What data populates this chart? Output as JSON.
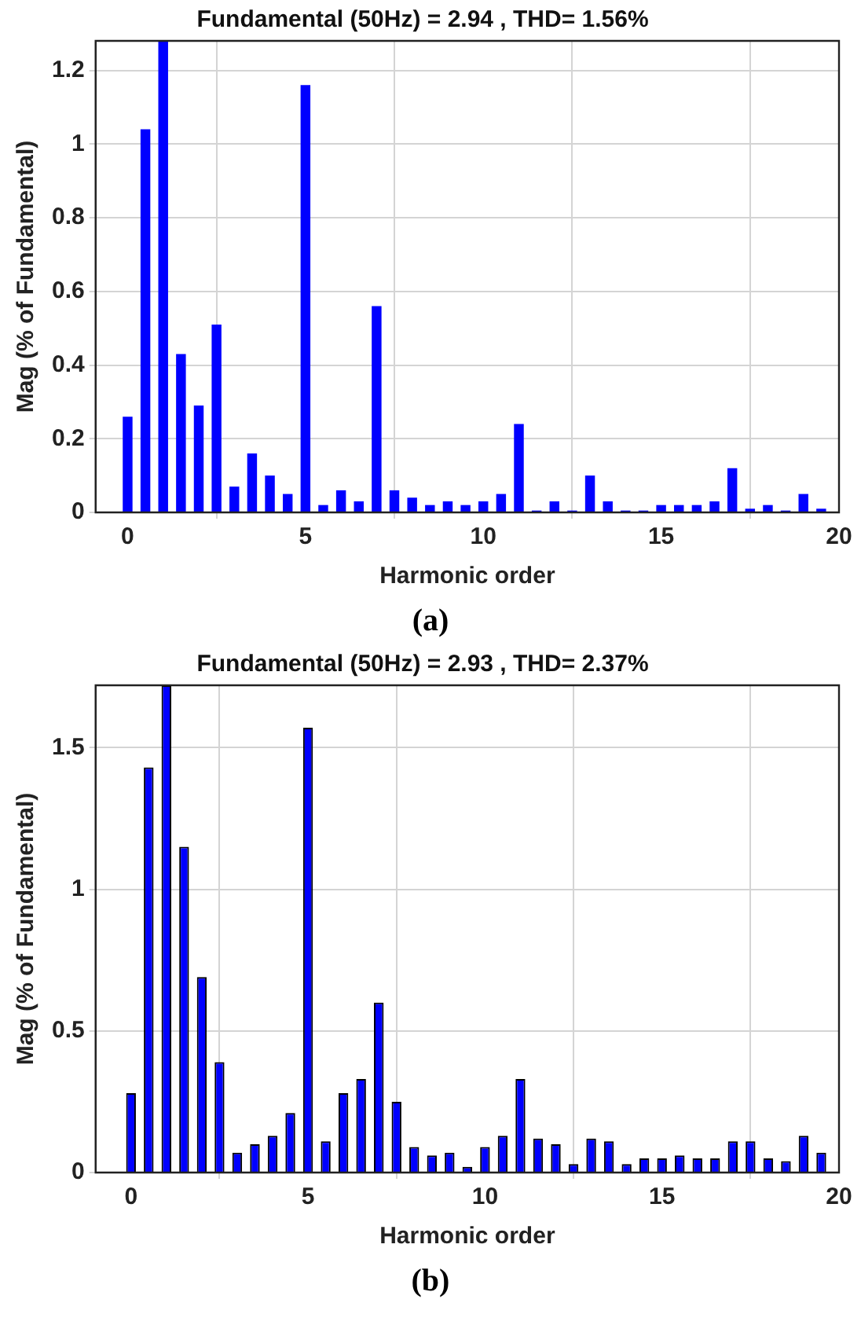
{
  "chart_data": [
    {
      "type": "bar",
      "title": "Fundamental (50Hz) = 2.94 , THD= 1.56%",
      "xlabel": "Harmonic order",
      "ylabel": "Mag (% of Fundamental)",
      "annotations": [
        "(a)"
      ],
      "x": [
        0,
        0.5,
        1,
        1.5,
        2,
        2.5,
        3,
        3.5,
        4,
        4.5,
        5,
        5.5,
        6,
        6.5,
        7,
        7.5,
        8,
        8.5,
        9,
        9.5,
        10,
        10.5,
        11,
        11.5,
        12,
        12.5,
        13,
        13.5,
        14,
        14.5,
        15,
        15.5,
        16,
        16.5,
        17,
        17.5,
        18,
        18.5,
        19,
        19.5
      ],
      "series": [
        {
          "color": "#0000ff",
          "values": [
            0.26,
            1.04,
            1.28,
            0.43,
            0.29,
            0.51,
            0.07,
            0.16,
            0.1,
            0.05,
            1.16,
            0.02,
            0.06,
            0.03,
            0.56,
            0.06,
            0.04,
            0.02,
            0.03,
            0.02,
            0.03,
            0.05,
            0.24,
            0.005,
            0.03,
            0.005,
            0.1,
            0.03,
            0.005,
            0.005,
            0.02,
            0.02,
            0.02,
            0.03,
            0.12,
            0.01,
            0.02,
            0.005,
            0.05,
            0.01
          ]
        }
      ],
      "xlim": [
        -0.9,
        20
      ],
      "xticks": [
        0,
        5,
        10,
        15,
        20
      ],
      "ylim": [
        0,
        1.28
      ],
      "yticks": [
        0,
        0.2,
        0.4,
        0.6,
        0.8,
        1,
        1.2
      ],
      "grid": true,
      "legend": false
    },
    {
      "type": "bar",
      "title": "Fundamental (50Hz) = 2.93 , THD= 2.37%",
      "xlabel": "Harmonic order",
      "ylabel": "Mag (% of Fundamental)",
      "annotations": [
        "(b)"
      ],
      "x": [
        0,
        0.5,
        1,
        1.5,
        2,
        2.5,
        3,
        3.5,
        4,
        4.5,
        5,
        5.5,
        6,
        6.5,
        7,
        7.5,
        8,
        8.5,
        9,
        9.5,
        10,
        10.5,
        11,
        11.5,
        12,
        12.5,
        13,
        13.5,
        14,
        14.5,
        15,
        15.5,
        16,
        16.5,
        17,
        17.5,
        18,
        18.5,
        19,
        19.5
      ],
      "series": [
        {
          "color": "#0000ff",
          "values": [
            0.28,
            1.43,
            1.72,
            1.15,
            0.69,
            0.39,
            0.07,
            0.1,
            0.13,
            0.21,
            1.57,
            0.11,
            0.28,
            0.33,
            0.6,
            0.25,
            0.09,
            0.06,
            0.07,
            0.02,
            0.09,
            0.13,
            0.33,
            0.12,
            0.1,
            0.03,
            0.12,
            0.11,
            0.03,
            0.05,
            0.05,
            0.06,
            0.05,
            0.05,
            0.11,
            0.11,
            0.05,
            0.04,
            0.13,
            0.07
          ]
        }
      ],
      "xlim": [
        -1,
        20
      ],
      "xticks": [
        0,
        5,
        10,
        15,
        20
      ],
      "ylim": [
        0,
        1.72
      ],
      "yticks": [
        0,
        0.5,
        1,
        1.5
      ],
      "grid": true,
      "legend": false
    }
  ]
}
